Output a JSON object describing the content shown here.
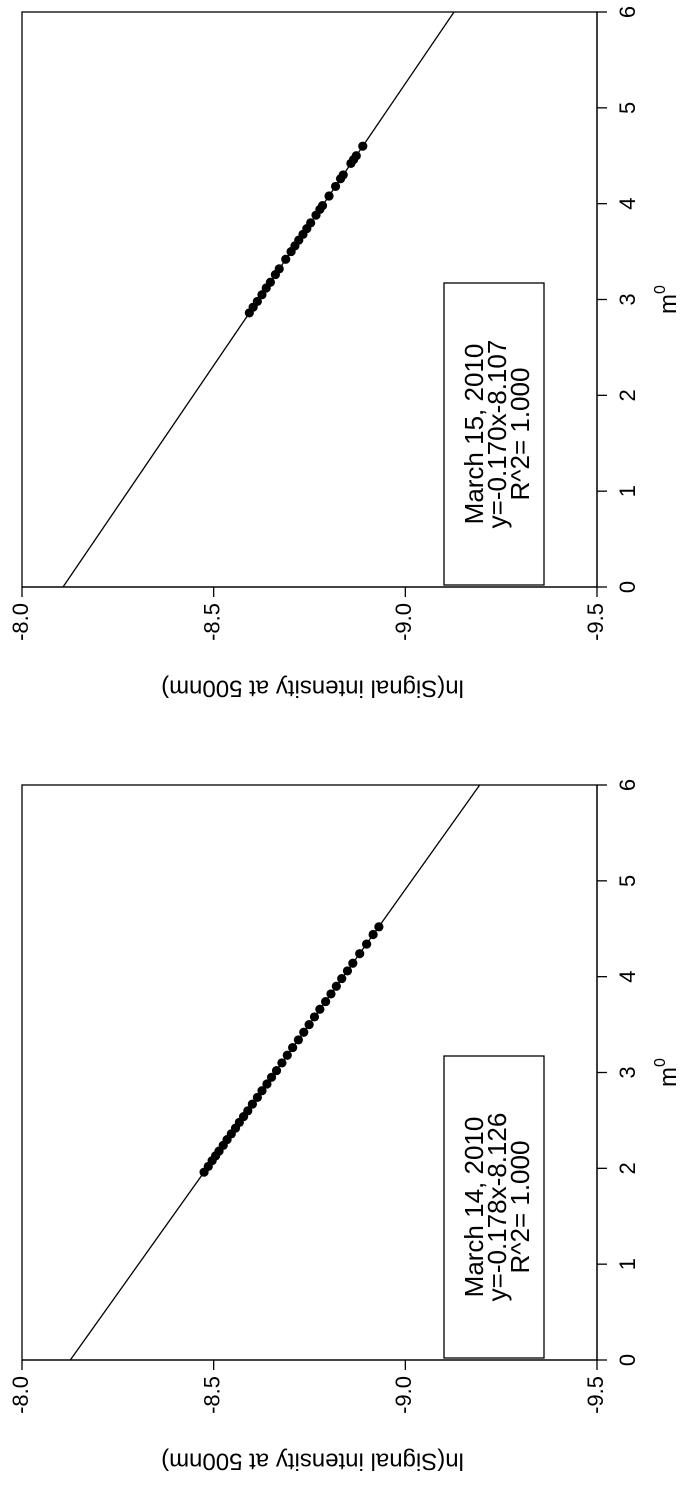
{
  "chart_data": [
    {
      "type": "scatter",
      "xlabel": "m",
      "xlabel_subscript": "0",
      "ylabel": "ln(Signal intensity at 500nm)",
      "xlim": [
        0,
        6
      ],
      "ylim": [
        -9.5,
        -8.0
      ],
      "x_ticks": [
        0,
        1,
        2,
        3,
        4,
        5,
        6
      ],
      "x_tick_labels": [
        "0",
        "1",
        "2",
        "3",
        "4",
        "5",
        "6"
      ],
      "y_ticks": [
        -8.0,
        -8.5,
        -9.0,
        -9.5
      ],
      "y_tick_labels": [
        "-8.0",
        "-8.5",
        "-9.0",
        "-9.5"
      ],
      "grid": false,
      "legend_lines": [
        "March 14, 2010",
        "y=-0.178x-8.126",
        "R^2= 1.000"
      ],
      "fit": {
        "slope": -0.178,
        "intercept": -8.126
      },
      "series": [
        {
          "x": [
            1.96,
            2.02,
            2.08,
            2.13,
            2.18,
            2.24,
            2.3,
            2.36,
            2.42,
            2.48,
            2.54,
            2.6,
            2.67,
            2.74,
            2.81,
            2.88,
            2.95,
            3.02,
            3.1,
            3.18,
            3.26,
            3.34,
            3.42,
            3.5,
            3.58,
            3.66,
            3.74,
            3.82,
            3.9,
            3.98,
            4.06,
            4.14,
            4.24,
            4.34,
            4.44,
            4.52
          ],
          "y": [
            -8.475,
            -8.486,
            -8.496,
            -8.505,
            -8.514,
            -8.525,
            -8.535,
            -8.546,
            -8.557,
            -8.567,
            -8.578,
            -8.589,
            -8.601,
            -8.614,
            -8.626,
            -8.639,
            -8.651,
            -8.664,
            -8.678,
            -8.692,
            -8.706,
            -8.721,
            -8.735,
            -8.749,
            -8.763,
            -8.777,
            -8.792,
            -8.806,
            -8.82,
            -8.834,
            -8.849,
            -8.863,
            -8.881,
            -8.899,
            -8.916,
            -8.931
          ]
        }
      ]
    },
    {
      "type": "scatter",
      "xlabel": "m",
      "xlabel_subscript": "0",
      "ylabel": "ln(Signal intensity at 500nm)",
      "xlim": [
        0,
        6
      ],
      "ylim": [
        -9.5,
        -8.0
      ],
      "x_ticks": [
        0,
        1,
        2,
        3,
        4,
        5,
        6
      ],
      "x_tick_labels": [
        "0",
        "1",
        "2",
        "3",
        "4",
        "5",
        "6"
      ],
      "y_ticks": [
        -8.0,
        -8.5,
        -9.0,
        -9.5
      ],
      "y_tick_labels": [
        "-8.0",
        "-8.5",
        "-9.0",
        "-9.5"
      ],
      "grid": false,
      "legend_lines": [
        "March 15, 2010",
        "y=-0.170x-8.107",
        "R^2= 1.000"
      ],
      "fit": {
        "slope": -0.17,
        "intercept": -8.107
      },
      "series": [
        {
          "x": [
            2.86,
            2.92,
            2.98,
            3.05,
            3.12,
            3.18,
            3.26,
            3.32,
            3.42,
            3.5,
            3.56,
            3.62,
            3.68,
            3.74,
            3.8,
            3.88,
            3.94,
            3.98,
            4.08,
            4.18,
            4.26,
            4.3,
            4.42,
            4.46,
            4.5,
            4.6
          ],
          "y": [
            -8.593,
            -8.603,
            -8.614,
            -8.626,
            -8.637,
            -8.648,
            -8.661,
            -8.671,
            -8.688,
            -8.702,
            -8.712,
            -8.722,
            -8.733,
            -8.743,
            -8.753,
            -8.767,
            -8.777,
            -8.784,
            -8.801,
            -8.818,
            -8.831,
            -8.838,
            -8.858,
            -8.865,
            -8.872,
            -8.889
          ]
        }
      ]
    }
  ]
}
